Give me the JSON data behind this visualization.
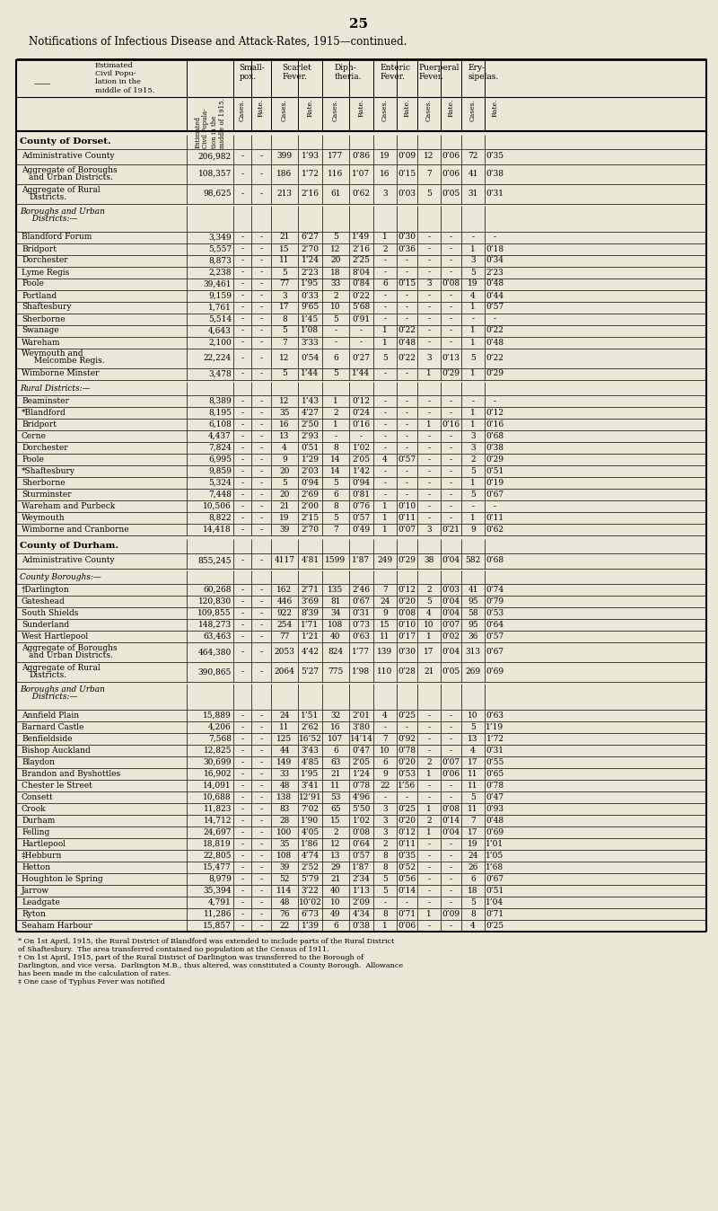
{
  "page_number": "25",
  "title": "Notifications of Infectious Disease and Attack-Rates, 1915—continued.",
  "bg_color": "#ece8d8",
  "rows": [
    {
      "type": "section",
      "name": "County of Dorset."
    },
    {
      "type": "aggregate",
      "name": "Administrative County",
      "pop": "206,982",
      "sc": "-",
      "sr": "-",
      "sfc": "399",
      "sfr": "1’93",
      "dc": "177",
      "dr": "0’86",
      "ec": "19",
      "er": "0’09",
      "pc": "12",
      "pr": "0’06",
      "eyc": "72",
      "eyr": "0’35"
    },
    {
      "type": "aggregate2",
      "name": "Aggregate of Boroughs\nand Urban Districts.",
      "pop": "108,357",
      "sc": "-",
      "sr": "-",
      "sfc": "186",
      "sfr": "1’72",
      "dc": "116",
      "dr": "1’07",
      "ec": "16",
      "er": "0’15",
      "pc": "7",
      "pr": "0’06",
      "eyc": "41",
      "eyr": "0’38"
    },
    {
      "type": "aggregate2",
      "name": "Aggregate of Rural\nDistricts.",
      "pop": "98,625",
      "sc": "-",
      "sr": "-",
      "sfc": "213",
      "sfr": "2’16",
      "dc": "61",
      "dr": "0’62",
      "ec": "3",
      "er": "0’03",
      "pc": "5",
      "pr": "0’05",
      "eyc": "31",
      "eyr": "0’31"
    },
    {
      "type": "subsection",
      "name": "Boroughs and Urban\n  Districts:—"
    },
    {
      "type": "data",
      "name": "Blandford Forum",
      "pop": "3,349",
      "sc": "-",
      "sr": "-",
      "sfc": "21",
      "sfr": "6’27",
      "dc": "5",
      "dr": "1’49",
      "ec": "1",
      "er": "0’30",
      "pc": "-",
      "pr": "-",
      "eyc": "-",
      "eyr": "-"
    },
    {
      "type": "data",
      "name": "Bridport",
      "pop": "5,557",
      "sc": "-",
      "sr": "-",
      "sfc": "15",
      "sfr": "2’70",
      "dc": "12",
      "dr": "2’16",
      "ec": "2",
      "er": "0’36",
      "pc": "-",
      "pr": "-",
      "eyc": "1",
      "eyr": "0’18"
    },
    {
      "type": "data",
      "name": "Dorchester",
      "pop": "8,873",
      "sc": "-",
      "sr": "-",
      "sfc": "11",
      "sfr": "1’24",
      "dc": "20",
      "dr": "2’25",
      "ec": "-",
      "er": "-",
      "pc": "-",
      "pr": "-",
      "eyc": "3",
      "eyr": "0’34"
    },
    {
      "type": "data",
      "name": "Lyme Regis",
      "pop": "2,238",
      "sc": "-",
      "sr": "-",
      "sfc": "5",
      "sfr": "2’23",
      "dc": "18",
      "dr": "8’04",
      "ec": "-",
      "er": "-",
      "pc": "-",
      "pr": "-",
      "eyc": "5",
      "eyr": "2’23"
    },
    {
      "type": "data",
      "name": "Poole",
      "pop": "39,461",
      "sc": "-",
      "sr": "-",
      "sfc": "77",
      "sfr": "1’95",
      "dc": "33",
      "dr": "0’84",
      "ec": "6",
      "er": "0’15",
      "pc": "3",
      "pr": "0’08",
      "eyc": "19",
      "eyr": "0’48"
    },
    {
      "type": "data",
      "name": "Portland",
      "pop": "9,159",
      "sc": "-",
      "sr": "-",
      "sfc": "3",
      "sfr": "0’33",
      "dc": "2",
      "dr": "0’22",
      "ec": "-",
      "er": "-",
      "pc": "-",
      "pr": "-",
      "eyc": "4",
      "eyr": "0’44"
    },
    {
      "type": "data",
      "name": "Shaftesbury",
      "pop": "1,761",
      "sc": "-",
      "sr": "-",
      "sfc": "17",
      "sfr": "9’65",
      "dc": "10",
      "dr": "5’68",
      "ec": "-",
      "er": "-",
      "pc": "-",
      "pr": "-",
      "eyc": "1",
      "eyr": "0’57"
    },
    {
      "type": "data",
      "name": "Sherborne",
      "pop": "5,514",
      "sc": "-",
      "sr": "-",
      "sfc": "8",
      "sfr": "1’45",
      "dc": "5",
      "dr": "0’91",
      "ec": "-",
      "er": "-",
      "pc": "-",
      "pr": "-",
      "eyc": "-",
      "eyr": "-"
    },
    {
      "type": "data",
      "name": "Swanage",
      "pop": "4,643",
      "sc": "-",
      "sr": "-",
      "sfc": "5",
      "sfr": "1’08",
      "dc": "-",
      "dr": "-",
      "ec": "1",
      "er": "0’22",
      "pc": "-",
      "pr": "-",
      "eyc": "1",
      "eyr": "0’22"
    },
    {
      "type": "data",
      "name": "Wareham",
      "pop": "2,100",
      "sc": "-",
      "sr": "-",
      "sfc": "7",
      "sfr": "3’33",
      "dc": "-",
      "dr": "-",
      "ec": "1",
      "er": "0’48",
      "pc": "-",
      "pr": "-",
      "eyc": "1",
      "eyr": "0’48"
    },
    {
      "type": "data2",
      "name": "Weymouth and\n  Melcombe Regis.",
      "pop": "22,224",
      "sc": "-",
      "sr": "-",
      "sfc": "12",
      "sfr": "0’54",
      "dc": "6",
      "dr": "0’27",
      "ec": "5",
      "er": "0’22",
      "pc": "3",
      "pr": "0’13",
      "eyc": "5",
      "eyr": "0’22"
    },
    {
      "type": "data",
      "name": "Wimborne Minster",
      "pop": "3,478",
      "sc": "-",
      "sr": "-",
      "sfc": "5",
      "sfr": "1’44",
      "dc": "5",
      "dr": "1’44",
      "ec": "-",
      "er": "-",
      "pc": "1",
      "pr": "0’29",
      "eyc": "1",
      "eyr": "0’29"
    },
    {
      "type": "subsection",
      "name": "Rural Districts:—"
    },
    {
      "type": "data",
      "name": "Beaminster",
      "pop": "8,389",
      "sc": "-",
      "sr": "-",
      "sfc": "12",
      "sfr": "1’43",
      "dc": "1",
      "dr": "0’12",
      "ec": "-",
      "er": "-",
      "pc": "-",
      "pr": "-",
      "eyc": "-",
      "eyr": "-"
    },
    {
      "type": "data",
      "name": "*Blandford",
      "pop": "8,195",
      "sc": "-",
      "sr": "-",
      "sfc": "35",
      "sfr": "4’27",
      "dc": "2",
      "dr": "0’24",
      "ec": "-",
      "er": "-",
      "pc": "-",
      "pr": "-",
      "eyc": "1",
      "eyr": "0’12"
    },
    {
      "type": "data",
      "name": "Bridport",
      "pop": "6,108",
      "sc": "-",
      "sr": "-",
      "sfc": "16",
      "sfr": "2’50",
      "dc": "1",
      "dr": "0’16",
      "ec": "-",
      "er": "-",
      "pc": "1",
      "pr": "0’16",
      "eyc": "1",
      "eyr": "0’16"
    },
    {
      "type": "data",
      "name": "Cerne",
      "pop": "4,437",
      "sc": "-",
      "sr": "-",
      "sfc": "13",
      "sfr": "2’93",
      "dc": "-",
      "dr": "-",
      "ec": "-",
      "er": "-",
      "pc": "-",
      "pr": "-",
      "eyc": "3",
      "eyr": "0’68"
    },
    {
      "type": "data",
      "name": "Dorchester",
      "pop": "7,824",
      "sc": "-",
      "sr": "-",
      "sfc": "4",
      "sfr": "0’51",
      "dc": "8",
      "dr": "1’02",
      "ec": "-",
      "er": "-",
      "pc": "-",
      "pr": "-",
      "eyc": "3",
      "eyr": "0’38"
    },
    {
      "type": "data",
      "name": "Poole",
      "pop": "6,995",
      "sc": "-",
      "sr": "-",
      "sfc": "9",
      "sfr": "1’29",
      "dc": "14",
      "dr": "2’05",
      "ec": "4",
      "er": "0’57",
      "pc": "-",
      "pr": "-",
      "eyc": "2",
      "eyr": "0’29"
    },
    {
      "type": "data",
      "name": "*Shaftesbury",
      "pop": "9,859",
      "sc": "-",
      "sr": "-",
      "sfc": "20",
      "sfr": "2’03",
      "dc": "14",
      "dr": "1’42",
      "ec": "-",
      "er": "-",
      "pc": "-",
      "pr": "-",
      "eyc": "5",
      "eyr": "0’51"
    },
    {
      "type": "data",
      "name": "Sherborne",
      "pop": "5,324",
      "sc": "-",
      "sr": "-",
      "sfc": "5",
      "sfr": "0’94",
      "dc": "5",
      "dr": "0’94",
      "ec": "-",
      "er": "-",
      "pc": "-",
      "pr": "-",
      "eyc": "1",
      "eyr": "0’19"
    },
    {
      "type": "data",
      "name": "Sturminster",
      "pop": "7,448",
      "sc": "-",
      "sr": "-",
      "sfc": "20",
      "sfr": "2’69",
      "dc": "6",
      "dr": "0’81",
      "ec": "-",
      "er": "-",
      "pc": "-",
      "pr": "-",
      "eyc": "5",
      "eyr": "0’67"
    },
    {
      "type": "data",
      "name": "Wareham and Purbeck",
      "pop": "10,506",
      "sc": "-",
      "sr": "-",
      "sfc": "21",
      "sfr": "2’00",
      "dc": "8",
      "dr": "0’76",
      "ec": "1",
      "er": "0’10",
      "pc": "-",
      "pr": "-",
      "eyc": "-",
      "eyr": "-"
    },
    {
      "type": "data",
      "name": "Weymouth",
      "pop": "8,822",
      "sc": "-",
      "sr": "-",
      "sfc": "19",
      "sfr": "2’15",
      "dc": "5",
      "dr": "0’57",
      "ec": "1",
      "er": "0’11",
      "pc": "-",
      "pr": "-",
      "eyc": "1",
      "eyr": "0’11"
    },
    {
      "type": "data",
      "name": "Wimborne and Cranborne",
      "pop": "14,418",
      "sc": "-",
      "sr": "-",
      "sfc": "39",
      "sfr": "2’70",
      "dc": "7",
      "dr": "0’49",
      "ec": "1",
      "er": "0’07",
      "pc": "3",
      "pr": "0’21",
      "eyc": "9",
      "eyr": "0’62"
    },
    {
      "type": "section",
      "name": "County of Durham."
    },
    {
      "type": "aggregate",
      "name": "Administrative County",
      "pop": "855,245",
      "sc": "-",
      "sr": "-",
      "sfc": "4117",
      "sfr": "4’81",
      "dc": "1599",
      "dr": "1’87",
      "ec": "249",
      "er": "0’29",
      "pc": "38",
      "pr": "0’04",
      "eyc": "582",
      "eyr": "0’68"
    },
    {
      "type": "subsection",
      "name": "County Boroughs:—"
    },
    {
      "type": "data",
      "name": "†Darlington",
      "pop": "60,268",
      "sc": "-",
      "sr": "-",
      "sfc": "162",
      "sfr": "2’71",
      "dc": "135",
      "dr": "2’46",
      "ec": "7",
      "er": "0’12",
      "pc": "2",
      "pr": "0’03",
      "eyc": "41",
      "eyr": "0’74"
    },
    {
      "type": "data",
      "name": "Gateshead",
      "pop": "120,830",
      "sc": "-",
      "sr": "-",
      "sfc": "446",
      "sfr": "3’69",
      "dc": "81",
      "dr": "0’67",
      "ec": "24",
      "er": "0’20",
      "pc": "5",
      "pr": "0’04",
      "eyc": "95",
      "eyr": "0’79"
    },
    {
      "type": "data",
      "name": "South Shields",
      "pop": "109,855",
      "sc": "-",
      "sr": "-",
      "sfc": "922",
      "sfr": "8’39",
      "dc": "34",
      "dr": "0’31",
      "ec": "9",
      "er": "0’08",
      "pc": "4",
      "pr": "0’04",
      "eyc": "58",
      "eyr": "0’53"
    },
    {
      "type": "data",
      "name": "Sunderland",
      "pop": "148,273",
      "sc": "-",
      "sr": "-",
      "sfc": "254",
      "sfr": "1’71",
      "dc": "108",
      "dr": "0’73",
      "ec": "15",
      "er": "0’10",
      "pc": "10",
      "pr": "0’07",
      "eyc": "95",
      "eyr": "0’64"
    },
    {
      "type": "data",
      "name": "West Hartlepool",
      "pop": "63,463",
      "sc": "-",
      "sr": "-",
      "sfc": "77",
      "sfr": "1’21",
      "dc": "40",
      "dr": "0’63",
      "ec": "11",
      "er": "0’17",
      "pc": "1",
      "pr": "0’02",
      "eyc": "36",
      "eyr": "0’57"
    },
    {
      "type": "aggregate2",
      "name": "Aggregate of Boroughs\nand Urban Districts.",
      "pop": "464,380",
      "sc": "-",
      "sr": "-",
      "sfc": "2053",
      "sfr": "4’42",
      "dc": "824",
      "dr": "1’77",
      "ec": "139",
      "er": "0’30",
      "pc": "17",
      "pr": "0’04",
      "eyc": "313",
      "eyr": "0’67"
    },
    {
      "type": "aggregate2",
      "name": "Aggregate of Rural\nDistricts.",
      "pop": "390,865",
      "sc": "-",
      "sr": "-",
      "sfc": "2064",
      "sfr": "5’27",
      "dc": "775",
      "dr": "1’98",
      "ec": "110",
      "er": "0’28",
      "pc": "21",
      "pr": "0’05",
      "eyc": "269",
      "eyr": "0’69"
    },
    {
      "type": "subsection",
      "name": "Boroughs and Urban\n  Districts:—"
    },
    {
      "type": "data",
      "name": "Annfield Plain",
      "pop": "15,889",
      "sc": "-",
      "sr": "-",
      "sfc": "24",
      "sfr": "1’51",
      "dc": "32",
      "dr": "2’01",
      "ec": "4",
      "er": "0’25",
      "pc": "-",
      "pr": "-",
      "eyc": "10",
      "eyr": "0’63"
    },
    {
      "type": "data",
      "name": "Barnard Castle",
      "pop": "4,206",
      "sc": "-",
      "sr": "-",
      "sfc": "11",
      "sfr": "2’62",
      "dc": "16",
      "dr": "3’80",
      "ec": "-",
      "er": "-",
      "pc": "-",
      "pr": "-",
      "eyc": "5",
      "eyr": "1’19"
    },
    {
      "type": "data",
      "name": "Benfieldside",
      "pop": "7,568",
      "sc": "-",
      "sr": "-",
      "sfc": "125",
      "sfr": "16’52",
      "dc": "107",
      "dr": "14’14",
      "ec": "7",
      "er": "0’92",
      "pc": "-",
      "pr": "-",
      "eyc": "13",
      "eyr": "1’72"
    },
    {
      "type": "data",
      "name": "Bishop Auckland",
      "pop": "12,825",
      "sc": "-",
      "sr": "-",
      "sfc": "44",
      "sfr": "3’43",
      "dc": "6",
      "dr": "0’47",
      "ec": "10",
      "er": "0’78",
      "pc": "-",
      "pr": "-",
      "eyc": "4",
      "eyr": "0’31"
    },
    {
      "type": "data",
      "name": "Blaydon",
      "pop": "30,699",
      "sc": "-",
      "sr": "-",
      "sfc": "149",
      "sfr": "4’85",
      "dc": "63",
      "dr": "2’05",
      "ec": "6",
      "er": "0’20",
      "pc": "2",
      "pr": "0’07",
      "eyc": "17",
      "eyr": "0’55"
    },
    {
      "type": "data",
      "name": "Brandon and Byshottles",
      "pop": "16,902",
      "sc": "-",
      "sr": "-",
      "sfc": "33",
      "sfr": "1’95",
      "dc": "21",
      "dr": "1’24",
      "ec": "9",
      "er": "0’53",
      "pc": "1",
      "pr": "0’06",
      "eyc": "11",
      "eyr": "0’65"
    },
    {
      "type": "data",
      "name": "Chester le Street",
      "pop": "14,091",
      "sc": "-",
      "sr": "-",
      "sfc": "48",
      "sfr": "3’41",
      "dc": "11",
      "dr": "0’78",
      "ec": "22",
      "er": "1’56",
      "pc": "-",
      "pr": "-",
      "eyc": "11",
      "eyr": "0’78"
    },
    {
      "type": "data",
      "name": "Consett",
      "pop": "10,688",
      "sc": "-",
      "sr": "-",
      "sfc": "138",
      "sfr": "12’91",
      "dc": "53",
      "dr": "4’96",
      "ec": "-",
      "er": "-",
      "pc": "-",
      "pr": "-",
      "eyc": "5",
      "eyr": "0’47"
    },
    {
      "type": "data",
      "name": "Crook",
      "pop": "11,823",
      "sc": "-",
      "sr": "-",
      "sfc": "83",
      "sfr": "7’02",
      "dc": "65",
      "dr": "5’50",
      "ec": "3",
      "er": "0’25",
      "pc": "1",
      "pr": "0’08",
      "eyc": "11",
      "eyr": "0’93"
    },
    {
      "type": "data",
      "name": "Durham",
      "pop": "14,712",
      "sc": "-",
      "sr": "-",
      "sfc": "28",
      "sfr": "1’90",
      "dc": "15",
      "dr": "1’02",
      "ec": "3",
      "er": "0’20",
      "pc": "2",
      "pr": "0’14",
      "eyc": "7",
      "eyr": "0’48"
    },
    {
      "type": "data",
      "name": "Felling",
      "pop": "24,697",
      "sc": "-",
      "sr": "-",
      "sfc": "100",
      "sfr": "4’05",
      "dc": "2",
      "dr": "0’08",
      "ec": "3",
      "er": "0’12",
      "pc": "1",
      "pr": "0’04",
      "eyc": "17",
      "eyr": "0’69"
    },
    {
      "type": "data",
      "name": "Hartlepool",
      "pop": "18,819",
      "sc": "-",
      "sr": "-",
      "sfc": "35",
      "sfr": "1’86",
      "dc": "12",
      "dr": "0’64",
      "ec": "2",
      "er": "0’11",
      "pc": "-",
      "pr": "-",
      "eyc": "19",
      "eyr": "1’01"
    },
    {
      "type": "data",
      "name": "‡Hebburn",
      "pop": "22,805",
      "sc": "-",
      "sr": "-",
      "sfc": "108",
      "sfr": "4’74",
      "dc": "13",
      "dr": "0’57",
      "ec": "8",
      "er": "0’35",
      "pc": "-",
      "pr": "-",
      "eyc": "24",
      "eyr": "1’05"
    },
    {
      "type": "data",
      "name": "Hetton",
      "pop": "15,477",
      "sc": "-",
      "sr": "-",
      "sfc": "39",
      "sfr": "2’52",
      "dc": "29",
      "dr": "1’87",
      "ec": "8",
      "er": "0’52",
      "pc": "-",
      "pr": "-",
      "eyc": "26",
      "eyr": "1’68"
    },
    {
      "type": "data",
      "name": "Houghton le Spring",
      "pop": "8,979",
      "sc": "-",
      "sr": "-",
      "sfc": "52",
      "sfr": "5’79",
      "dc": "21",
      "dr": "2’34",
      "ec": "5",
      "er": "0’56",
      "pc": "-",
      "pr": "-",
      "eyc": "6",
      "eyr": "0’67"
    },
    {
      "type": "data",
      "name": "Jarrow",
      "pop": "35,394",
      "sc": "-",
      "sr": "-",
      "sfc": "114",
      "sfr": "3’22",
      "dc": "40",
      "dr": "1’13",
      "ec": "5",
      "er": "0’14",
      "pc": "-",
      "pr": "-",
      "eyc": "18",
      "eyr": "0’51"
    },
    {
      "type": "data",
      "name": "Leadgate",
      "pop": "4,791",
      "sc": "-",
      "sr": "-",
      "sfc": "48",
      "sfr": "10’02",
      "dc": "10",
      "dr": "2’09",
      "ec": "-",
      "er": "-",
      "pc": "-",
      "pr": "-",
      "eyc": "5",
      "eyr": "1’04"
    },
    {
      "type": "data",
      "name": "Ryton",
      "pop": "11,286",
      "sc": "-",
      "sr": "-",
      "sfc": "76",
      "sfr": "6’73",
      "dc": "49",
      "dr": "4’34",
      "ec": "8",
      "er": "0’71",
      "pc": "1",
      "pr": "0’09",
      "eyc": "8",
      "eyr": "0’71"
    },
    {
      "type": "data",
      "name": "Seaham Harbour",
      "pop": "15,857",
      "sc": "-",
      "sr": "-",
      "sfc": "22",
      "sfr": "1’39",
      "dc": "6",
      "dr": "0’38",
      "ec": "1",
      "er": "0’06",
      "pc": "-",
      "pr": "-",
      "eyc": "4",
      "eyr": "0’25"
    }
  ],
  "footnotes": [
    "* On 1st April, 1915, the Rural District of Blandford was extended to include parts of the Rural District",
    "of Shaftesbury.  The area transferred contained no population at the Census of 1911.",
    "† On 1st April, 1915, part of the Rural District of Darlington was transferred to the Borough of",
    "Darlington, and vice versa.  Darlington M.B., thus altered, was constituted a County Borough.  Allowance",
    "has been made in the calculation of rates.",
    "‡ One case of Typhus Fever was notified"
  ]
}
